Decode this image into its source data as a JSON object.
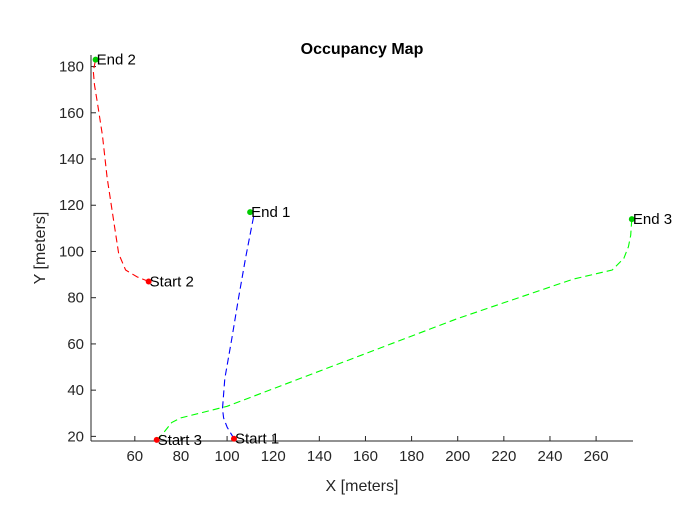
{
  "chart_data": {
    "type": "line",
    "title": "Occupancy Map",
    "xlabel": "X [meters]",
    "ylabel": "Y [meters]",
    "xlim": [
      41,
      276
    ],
    "ylim": [
      18,
      185
    ],
    "xticks": [
      60,
      80,
      100,
      120,
      140,
      160,
      180,
      200,
      220,
      240,
      260
    ],
    "yticks": [
      20,
      40,
      60,
      80,
      100,
      120,
      140,
      160,
      180
    ],
    "grid": false,
    "box": "open",
    "start_color": "#ff0000",
    "end_color": "#00cc00",
    "series": [
      {
        "color": "#0000ff",
        "linestyle": "dashed",
        "start_label": "Start 1",
        "end_label": "End 1",
        "x": [
          103,
          100,
          98.5,
          98,
          99,
          102,
          105,
          108,
          110.5,
          111.5,
          110
        ],
        "y": [
          19,
          24,
          28,
          32,
          45,
          62,
          80,
          97,
          110,
          115,
          117
        ]
      },
      {
        "color": "#ff0000",
        "linestyle": "dashed",
        "start_label": "Start 2",
        "end_label": "End 2",
        "x": [
          66,
          61,
          56,
          53,
          51,
          48,
          46,
          44,
          42.5,
          42,
          43
        ],
        "y": [
          87,
          89,
          92,
          99,
          112,
          132,
          150,
          163,
          172,
          178,
          183
        ]
      },
      {
        "color": "#00ff00",
        "linestyle": "dashed",
        "start_label": "Start 3",
        "end_label": "End 3",
        "x": [
          69.5,
          72,
          76,
          80,
          100,
          150,
          200,
          250,
          267,
          272,
          274,
          275,
          275.5
        ],
        "y": [
          18.5,
          21,
          26,
          28,
          33,
          52,
          71,
          88,
          92,
          97,
          102,
          107,
          114
        ]
      }
    ]
  }
}
